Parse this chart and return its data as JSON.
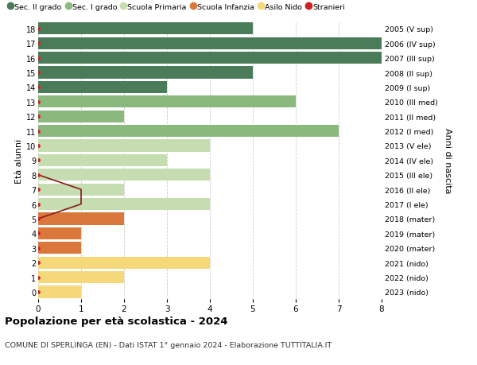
{
  "ages": [
    18,
    17,
    16,
    15,
    14,
    13,
    12,
    11,
    10,
    9,
    8,
    7,
    6,
    5,
    4,
    3,
    2,
    1,
    0
  ],
  "years": [
    "2005 (V sup)",
    "2006 (IV sup)",
    "2007 (III sup)",
    "2008 (II sup)",
    "2009 (I sup)",
    "2010 (III med)",
    "2011 (II med)",
    "2012 (I med)",
    "2013 (V ele)",
    "2014 (IV ele)",
    "2015 (III ele)",
    "2016 (II ele)",
    "2017 (I ele)",
    "2018 (mater)",
    "2019 (mater)",
    "2020 (mater)",
    "2021 (nido)",
    "2022 (nido)",
    "2023 (nido)"
  ],
  "values": [
    5,
    8,
    8,
    5,
    3,
    6,
    2,
    7,
    4,
    3,
    4,
    2,
    4,
    2,
    1,
    1,
    4,
    2,
    1
  ],
  "stranieri": [
    0,
    0,
    0,
    0,
    0,
    0,
    0,
    0,
    0,
    0,
    0,
    1,
    1,
    0,
    0,
    0,
    0,
    0,
    0
  ],
  "bar_colors": [
    "#4a7c59",
    "#4a7c59",
    "#4a7c59",
    "#4a7c59",
    "#4a7c59",
    "#8ab87d",
    "#8ab87d",
    "#8ab87d",
    "#c5ddb0",
    "#c5ddb0",
    "#c5ddb0",
    "#c5ddb0",
    "#c5ddb0",
    "#d9783a",
    "#d9783a",
    "#d9783a",
    "#f5d87a",
    "#f5d87a",
    "#f5d87a"
  ],
  "legend_labels": [
    "Sec. II grado",
    "Sec. I grado",
    "Scuola Primaria",
    "Scuola Infanzia",
    "Asilo Nido",
    "Stranieri"
  ],
  "legend_colors": [
    "#4a7c59",
    "#8ab87d",
    "#c5ddb0",
    "#d9783a",
    "#f5d87a",
    "#cc2222"
  ],
  "stranieri_color": "#cc2222",
  "stranieri_line_color": "#8b1a1a",
  "title": "Popolazione per età scolastica - 2024",
  "subtitle": "COMUNE DI SPERLINGA (EN) - Dati ISTAT 1° gennaio 2024 - Elaborazione TUTTITALIA.IT",
  "ylabel_left": "Età alunni",
  "ylabel_right": "Anni di nascita",
  "xlim": [
    0,
    8
  ],
  "bg_color": "#ffffff",
  "grid_color": "#cccccc",
  "bar_height": 0.82
}
